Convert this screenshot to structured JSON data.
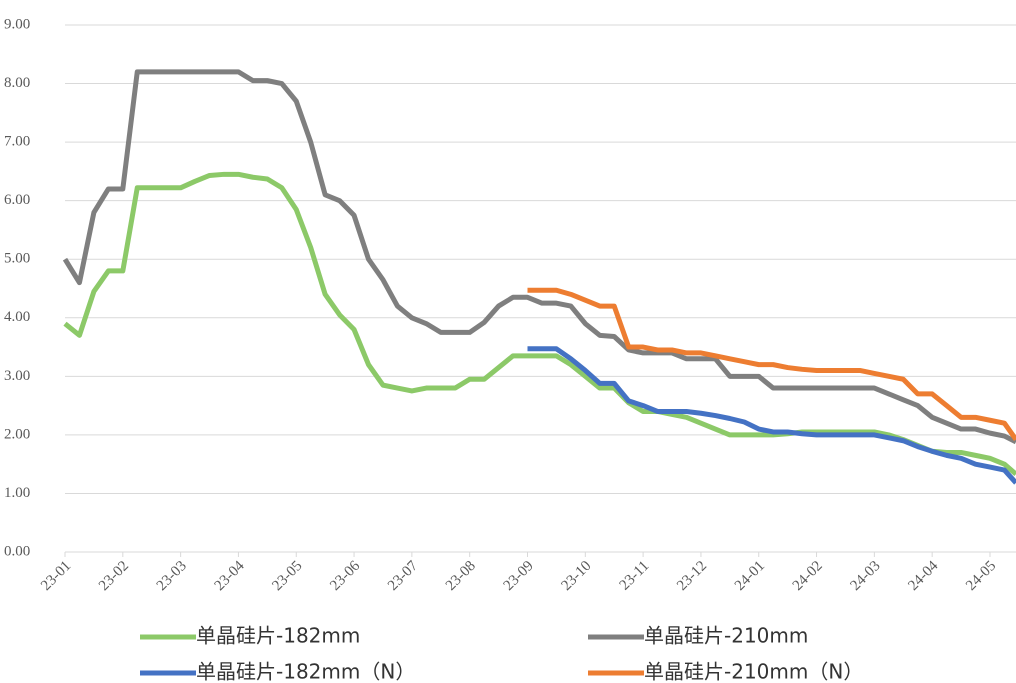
{
  "chart_data": {
    "type": "line",
    "x": [
      0,
      0.25,
      0.5,
      0.75,
      1,
      1.25,
      1.5,
      1.75,
      2,
      2.25,
      2.5,
      2.75,
      3,
      3.25,
      3.5,
      3.75,
      4,
      4.25,
      4.5,
      4.75,
      5,
      5.25,
      5.5,
      5.75,
      6,
      6.25,
      6.5,
      6.75,
      7,
      7.25,
      7.5,
      7.75,
      8,
      8.25,
      8.5,
      8.75,
      9,
      9.25,
      9.5,
      9.75,
      10,
      10.25,
      10.5,
      10.75,
      11,
      11.25,
      11.5,
      11.75,
      12,
      12.25,
      12.5,
      12.75,
      13,
      13.25,
      13.5,
      13.75,
      14,
      14.25,
      14.5,
      14.75,
      15,
      15.25,
      15.5,
      15.75,
      16,
      16.25,
      16.45
    ],
    "series": [
      {
        "name": "单晶硅片-182mm",
        "color": "#8cc968",
        "values": [
          3.9,
          3.7,
          4.45,
          4.8,
          4.8,
          6.22,
          6.22,
          6.22,
          6.22,
          6.33,
          6.43,
          6.45,
          6.45,
          6.4,
          6.37,
          6.22,
          5.85,
          5.2,
          4.4,
          4.05,
          3.8,
          3.2,
          2.85,
          2.8,
          2.75,
          2.8,
          2.8,
          2.8,
          2.95,
          2.95,
          3.15,
          3.35,
          3.35,
          3.35,
          3.35,
          3.2,
          3.0,
          2.8,
          2.8,
          2.55,
          2.4,
          2.4,
          2.35,
          2.3,
          2.2,
          2.1,
          2.0,
          2.0,
          2.0,
          2.0,
          2.02,
          2.05,
          2.05,
          2.05,
          2.05,
          2.05,
          2.05,
          2.0,
          1.92,
          1.82,
          1.72,
          1.7,
          1.7,
          1.65,
          1.6,
          1.5,
          1.33
        ]
      },
      {
        "name": "单晶硅片-210mm",
        "color": "#7f7f7f",
        "values": [
          5.0,
          4.6,
          5.8,
          6.2,
          6.2,
          8.2,
          8.2,
          8.2,
          8.2,
          8.2,
          8.2,
          8.2,
          8.2,
          8.05,
          8.05,
          8.0,
          7.7,
          7.0,
          6.1,
          6.0,
          5.75,
          5.0,
          4.65,
          4.2,
          4.0,
          3.9,
          3.75,
          3.75,
          3.75,
          3.92,
          4.2,
          4.35,
          4.35,
          4.25,
          4.25,
          4.2,
          3.9,
          3.7,
          3.68,
          3.45,
          3.4,
          3.4,
          3.4,
          3.3,
          3.3,
          3.3,
          3.0,
          3.0,
          3.0,
          2.8,
          2.8,
          2.8,
          2.8,
          2.8,
          2.8,
          2.8,
          2.8,
          2.7,
          2.6,
          2.5,
          2.3,
          2.2,
          2.1,
          2.1,
          2.03,
          1.98,
          1.88
        ]
      },
      {
        "name": "单晶硅片-182mm（N）",
        "color": "#4472c4",
        "values": [
          null,
          null,
          null,
          null,
          null,
          null,
          null,
          null,
          null,
          null,
          null,
          null,
          null,
          null,
          null,
          null,
          null,
          null,
          null,
          null,
          null,
          null,
          null,
          null,
          null,
          null,
          null,
          null,
          null,
          null,
          null,
          null,
          3.47,
          3.47,
          3.47,
          3.3,
          3.1,
          2.88,
          2.88,
          2.58,
          2.5,
          2.4,
          2.4,
          2.4,
          2.37,
          2.33,
          2.28,
          2.22,
          2.1,
          2.05,
          2.05,
          2.02,
          2.0,
          2.0,
          2.0,
          2.0,
          2.0,
          1.95,
          1.9,
          1.8,
          1.72,
          1.65,
          1.6,
          1.5,
          1.45,
          1.4,
          1.18
        ]
      },
      {
        "name": "单晶硅片-210mm（N）",
        "color": "#ed7d31",
        "values": [
          null,
          null,
          null,
          null,
          null,
          null,
          null,
          null,
          null,
          null,
          null,
          null,
          null,
          null,
          null,
          null,
          null,
          null,
          null,
          null,
          null,
          null,
          null,
          null,
          null,
          null,
          null,
          null,
          null,
          null,
          null,
          null,
          4.47,
          4.47,
          4.47,
          4.4,
          4.3,
          4.2,
          4.2,
          3.5,
          3.5,
          3.45,
          3.45,
          3.4,
          3.4,
          3.35,
          3.3,
          3.25,
          3.2,
          3.2,
          3.15,
          3.12,
          3.1,
          3.1,
          3.1,
          3.1,
          3.05,
          3.0,
          2.95,
          2.7,
          2.7,
          2.5,
          2.3,
          2.3,
          2.25,
          2.2,
          1.92
        ]
      }
    ],
    "xlim": [
      0,
      16.45
    ],
    "xticks": [
      {
        "value": 0,
        "label": "23-01"
      },
      {
        "value": 1,
        "label": "23-02"
      },
      {
        "value": 2,
        "label": "23-03"
      },
      {
        "value": 3,
        "label": "23-04"
      },
      {
        "value": 4,
        "label": "23-05"
      },
      {
        "value": 5,
        "label": "23-06"
      },
      {
        "value": 6,
        "label": "23-07"
      },
      {
        "value": 7,
        "label": "23-08"
      },
      {
        "value": 8,
        "label": "23-09"
      },
      {
        "value": 9,
        "label": "23-10"
      },
      {
        "value": 10,
        "label": "23-11"
      },
      {
        "value": 11,
        "label": "23-12"
      },
      {
        "value": 12,
        "label": "24-01"
      },
      {
        "value": 13,
        "label": "24-02"
      },
      {
        "value": 14,
        "label": "24-03"
      },
      {
        "value": 15,
        "label": "24-04"
      },
      {
        "value": 16,
        "label": "24-05"
      }
    ],
    "ylim": [
      0,
      9
    ],
    "yticks": [
      {
        "value": 0,
        "label": "0.00"
      },
      {
        "value": 1,
        "label": "1.00"
      },
      {
        "value": 2,
        "label": "2.00"
      },
      {
        "value": 3,
        "label": "3.00"
      },
      {
        "value": 4,
        "label": "4.00"
      },
      {
        "value": 5,
        "label": "5.00"
      },
      {
        "value": 6,
        "label": "6.00"
      },
      {
        "value": 7,
        "label": "7.00"
      },
      {
        "value": 8,
        "label": "8.00"
      },
      {
        "value": 9,
        "label": "9.00"
      }
    ],
    "grid": true
  }
}
